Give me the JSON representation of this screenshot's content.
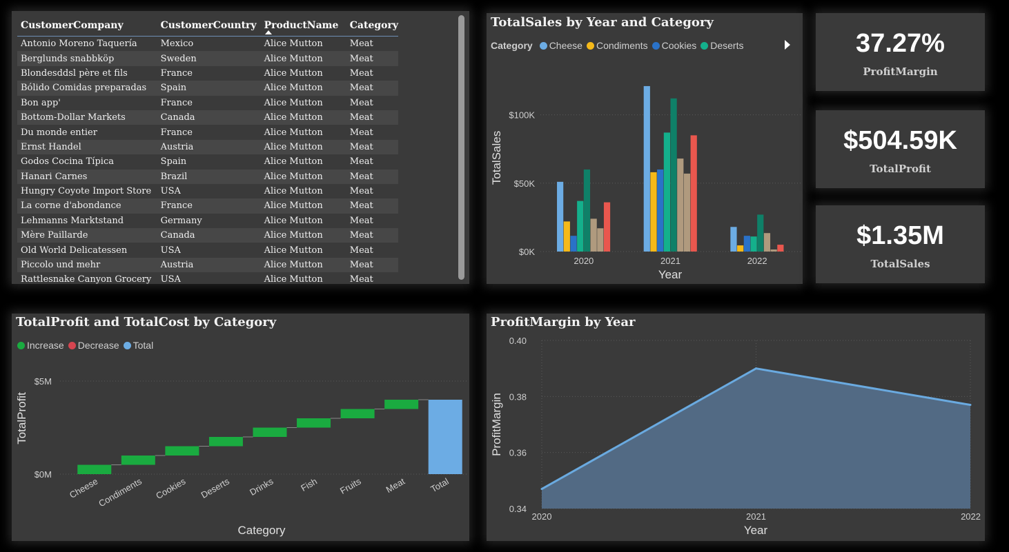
{
  "table": {
    "columns": [
      "CustomerCompany",
      "CustomerCountry",
      "ProductName",
      "Category"
    ],
    "rows": [
      [
        "Antonio Moreno Taquería",
        "Mexico",
        "Alice Mutton",
        "Meat"
      ],
      [
        "Berglunds snabbköp",
        "Sweden",
        "Alice Mutton",
        "Meat"
      ],
      [
        "Blondesddsl père et fils",
        "France",
        "Alice Mutton",
        "Meat"
      ],
      [
        "Bólido Comidas preparadas",
        "Spain",
        "Alice Mutton",
        "Meat"
      ],
      [
        "Bon app'",
        "France",
        "Alice Mutton",
        "Meat"
      ],
      [
        "Bottom-Dollar Markets",
        "Canada",
        "Alice Mutton",
        "Meat"
      ],
      [
        "Du monde entier",
        "France",
        "Alice Mutton",
        "Meat"
      ],
      [
        "Ernst Handel",
        "Austria",
        "Alice Mutton",
        "Meat"
      ],
      [
        "Godos Cocina Típica",
        "Spain",
        "Alice Mutton",
        "Meat"
      ],
      [
        "Hanari Carnes",
        "Brazil",
        "Alice Mutton",
        "Meat"
      ],
      [
        "Hungry Coyote Import Store",
        "USA",
        "Alice Mutton",
        "Meat"
      ],
      [
        "La corne d'abondance",
        "France",
        "Alice Mutton",
        "Meat"
      ],
      [
        "Lehmanns Marktstand",
        "Germany",
        "Alice Mutton",
        "Meat"
      ],
      [
        "Mère Paillarde",
        "Canada",
        "Alice Mutton",
        "Meat"
      ],
      [
        "Old World Delicatessen",
        "USA",
        "Alice Mutton",
        "Meat"
      ],
      [
        "Piccolo und mehr",
        "Austria",
        "Alice Mutton",
        "Meat"
      ],
      [
        "Rattlesnake Canyon Grocery",
        "USA",
        "Alice Mutton",
        "Meat"
      ]
    ]
  },
  "kpis": [
    {
      "value": "37.27%",
      "label": "ProfitMargin"
    },
    {
      "value": "$504.59K",
      "label": "TotalProfit"
    },
    {
      "value": "$1.35M",
      "label": "TotalSales"
    }
  ],
  "colors": {
    "card": "#3a3a3a",
    "Cheese": "#6cace4",
    "Condiments": "#f5b919",
    "Cookies": "#2a72c8",
    "Deserts": "#14b08c",
    "extra1": "#0f8068",
    "extra2": "#b09a7e",
    "extra3": "#e9574e",
    "increase": "#1aab40",
    "decrease": "#d64550",
    "total": "#6cace4",
    "area_line": "#6aaae0",
    "area_fill": "#526a84"
  },
  "chart_data": [
    {
      "type": "bar",
      "title": "TotalSales by Year and Category",
      "xlabel": "Year",
      "ylabel": "TotalSales",
      "legend_title": "Category",
      "categories": [
        "2020",
        "2021",
        "2022"
      ],
      "yticks": [
        0,
        50000,
        100000
      ],
      "ytick_labels": [
        "$0K",
        "$50K",
        "$100K"
      ],
      "ylim": [
        0,
        125000
      ],
      "series": [
        {
          "name": "Cheese",
          "color_key": "Cheese",
          "values": [
            51000,
            121000,
            18000
          ]
        },
        {
          "name": "Condiments",
          "color_key": "Condiments",
          "values": [
            22000,
            58000,
            4500
          ]
        },
        {
          "name": "Cookies",
          "color_key": "Cookies",
          "values": [
            11500,
            60000,
            11500
          ]
        },
        {
          "name": "Deserts",
          "color_key": "Deserts",
          "values": [
            37000,
            87000,
            11000
          ]
        },
        {
          "name": "",
          "color_key": "extra1",
          "values": [
            60000,
            112000,
            27000
          ]
        },
        {
          "name": "",
          "color_key": "extra2",
          "values": [
            24000,
            68000,
            13500
          ]
        },
        {
          "name": "",
          "color_key": "extra2",
          "values": [
            17000,
            57000,
            1500
          ]
        },
        {
          "name": "",
          "color_key": "extra3",
          "values": [
            36000,
            85000,
            5000
          ]
        }
      ]
    },
    {
      "type": "bar",
      "subtype": "waterfall",
      "title": "TotalProfit and TotalCost by Category",
      "xlabel": "Category",
      "ylabel": "TotalProfit",
      "legend": [
        "Increase",
        "Decrease",
        "Total"
      ],
      "categories": [
        "Cheese",
        "Condiments",
        "Cookies",
        "Deserts",
        "Drinks",
        "Fish",
        "Fruits",
        "Meat",
        "Total"
      ],
      "values": [
        0.5,
        0.5,
        0.5,
        0.5,
        0.5,
        0.5,
        0.5,
        0.5,
        4.0
      ],
      "yticks": [
        0,
        5
      ],
      "ytick_labels": [
        "$0M",
        "$5M"
      ],
      "ylim": [
        0,
        5
      ]
    },
    {
      "type": "area",
      "title": "ProfitMargin by Year",
      "xlabel": "Year",
      "ylabel": "ProfitMargin",
      "x": [
        2020,
        2021,
        2022
      ],
      "xtick_labels": [
        "2020",
        "2021",
        "2022"
      ],
      "values": [
        0.347,
        0.39,
        0.377
      ],
      "yticks": [
        0.34,
        0.36,
        0.38,
        0.4
      ],
      "ytick_labels": [
        "0.34",
        "0.36",
        "0.38",
        "0.40"
      ],
      "ylim": [
        0.34,
        0.4
      ]
    }
  ]
}
